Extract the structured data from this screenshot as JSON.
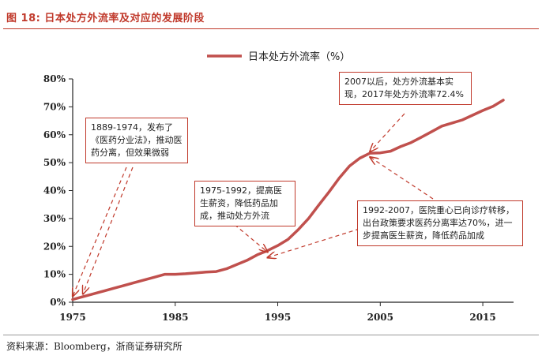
{
  "figure_title": "图 18: 日本处方外流率及对应的发展阶段",
  "source": "资料来源：Bloomberg，浙商证券研究所",
  "chart_data": {
    "type": "line",
    "title": "",
    "xlabel": "",
    "ylabel": "",
    "xlim": [
      1975,
      2018
    ],
    "ylim": [
      0,
      80
    ],
    "xticks": [
      1975,
      1985,
      1995,
      2005,
      2015
    ],
    "xtick_labels": [
      "1975",
      "1985",
      "1995",
      "2005",
      "2015"
    ],
    "yticks": [
      0,
      10,
      20,
      30,
      40,
      50,
      60,
      70,
      80
    ],
    "ytick_labels": [
      "0%",
      "10%",
      "20%",
      "30%",
      "40%",
      "50%",
      "60%",
      "70%",
      "80%"
    ],
    "legend": "top-center",
    "series": [
      {
        "name": "日本处方外流率（%）",
        "color": "#c0504d",
        "x": [
          1975,
          1976,
          1977,
          1978,
          1979,
          1980,
          1981,
          1982,
          1983,
          1984,
          1985,
          1986,
          1987,
          1988,
          1989,
          1990,
          1991,
          1992,
          1993,
          1994,
          1995,
          1996,
          1997,
          1998,
          1999,
          2000,
          2001,
          2002,
          2003,
          2004,
          2005,
          2006,
          2007,
          2008,
          2009,
          2010,
          2011,
          2012,
          2013,
          2014,
          2015,
          2016,
          2017
        ],
        "values": [
          1.0,
          2.0,
          3.0,
          4.0,
          5.0,
          6.0,
          7.0,
          8.0,
          9.0,
          10.0,
          10.0,
          10.2,
          10.5,
          10.8,
          11.0,
          12.0,
          13.5,
          15.0,
          17.0,
          18.5,
          20.3,
          22.5,
          26.0,
          30.0,
          34.8,
          39.5,
          44.5,
          48.8,
          51.6,
          53.4,
          53.5,
          54.1,
          55.8,
          57.2,
          59.1,
          61.1,
          63.1,
          64.2,
          65.3,
          67.0,
          68.7,
          70.2,
          72.4
        ]
      }
    ],
    "annotations": [
      {
        "text": "1889-1974，发布了《医药分业法》，推动医药分离，但效果微弱",
        "arrow_to": [
          [
            1975,
            1
          ],
          [
            1976,
            3
          ]
        ]
      },
      {
        "text": "1975-1992，提高医生薪资，降低药品加成，推动处方外流",
        "arrow_to": [
          [
            1994,
            18
          ]
        ]
      },
      {
        "text": "1992-2007，医院重心已向诊疗转移，出台政策要求医药分离率达70%，进一步提高医生薪资，降低药品加成",
        "arrow_to": [
          [
            1994,
            16
          ],
          [
            2004,
            52
          ]
        ]
      },
      {
        "text": "2007以后，处方外流基本实现，2017年处方外流率72.4%",
        "arrow_to": [
          [
            2004,
            54
          ]
        ]
      }
    ]
  }
}
